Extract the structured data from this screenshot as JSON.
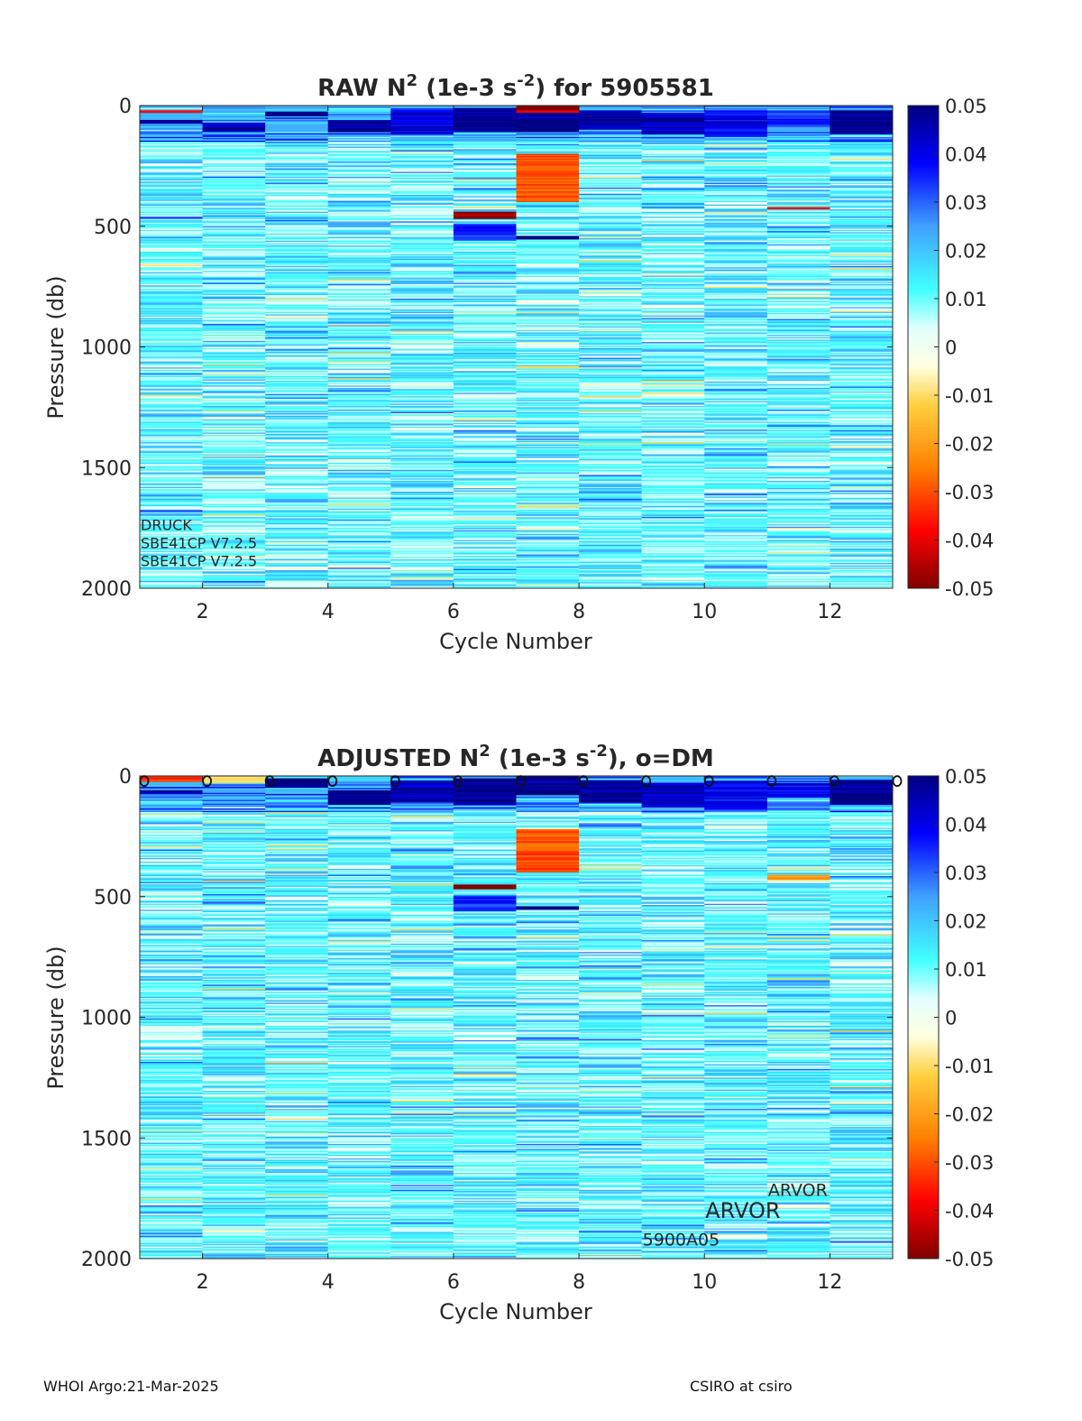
{
  "footer": {
    "left": "WHOI Argo:21-Mar-2025",
    "right": "CSIRO at csiro"
  },
  "chart_data": [
    {
      "type": "heatmap",
      "title_main": "RAW N",
      "title_sup1": "2",
      "title_mid": " (1e-3 s",
      "title_sup2": "-2",
      "title_end": ") for 5905581",
      "xlabel": "Cycle Number",
      "ylabel": "Pressure (db)",
      "xlim": [
        1,
        13
      ],
      "ylim": [
        2000,
        0
      ],
      "x_ticks": [
        2,
        4,
        6,
        8,
        10,
        12
      ],
      "y_ticks": [
        0,
        500,
        1000,
        1500,
        2000
      ],
      "colorbar": {
        "colormap": "jet-white-centered",
        "range": [
          -0.05,
          0.05
        ],
        "ticks": [
          "0.05",
          "0.04",
          "0.03",
          "0.02",
          "0.01",
          "0",
          "-0.01",
          "-0.02",
          "-0.03",
          "-0.04",
          "-0.05"
        ]
      },
      "cycles": [
        1,
        2,
        3,
        4,
        5,
        6,
        7,
        8,
        9,
        10,
        11,
        12,
        13
      ],
      "annotations": [
        {
          "text": "DRUCK",
          "x": 1,
          "y": 1738
        },
        {
          "text": "SBE41CP V7.2.5",
          "x": 1,
          "y": 1812
        },
        {
          "text": "SBE41CP V7.2.5",
          "x": 1,
          "y": 1888
        }
      ],
      "features": [
        {
          "cycle": 1,
          "pressure": [
            20,
            30
          ],
          "value": -0.04
        },
        {
          "cycle": 1,
          "pressure": [
            60,
            75
          ],
          "value": 0.05
        },
        {
          "cycle": 2,
          "pressure": [
            70,
            110
          ],
          "value": 0.045
        },
        {
          "cycle": 3,
          "pressure": [
            25,
            45
          ],
          "value": 0.05
        },
        {
          "cycle": 4,
          "pressure": [
            60,
            110
          ],
          "value": 0.05
        },
        {
          "cycle": 5,
          "pressure": [
            20,
            120
          ],
          "value": 0.04
        },
        {
          "cycle": 6,
          "pressure": [
            10,
            110
          ],
          "value": 0.05
        },
        {
          "cycle": 6,
          "pressure": [
            440,
            470
          ],
          "value": -0.05
        },
        {
          "cycle": 6,
          "pressure": [
            490,
            560
          ],
          "value": 0.035
        },
        {
          "cycle": 7,
          "pressure": [
            0,
            30
          ],
          "value": -0.045
        },
        {
          "cycle": 7,
          "pressure": [
            30,
            110
          ],
          "value": 0.05
        },
        {
          "cycle": 7,
          "pressure": [
            200,
            400
          ],
          "value": -0.03
        },
        {
          "cycle": 7,
          "pressure": [
            540,
            555
          ],
          "value": 0.05
        },
        {
          "cycle": 8,
          "pressure": [
            20,
            100
          ],
          "value": 0.045
        },
        {
          "cycle": 9,
          "pressure": [
            30,
            120
          ],
          "value": 0.045
        },
        {
          "cycle": 10,
          "pressure": [
            20,
            130
          ],
          "value": 0.04
        },
        {
          "cycle": 11,
          "pressure": [
            20,
            90
          ],
          "value": 0.035
        },
        {
          "cycle": 11,
          "pressure": [
            420,
            430
          ],
          "value": -0.04
        },
        {
          "cycle": 12,
          "pressure": [
            20,
            120
          ],
          "value": 0.05
        }
      ]
    },
    {
      "type": "heatmap",
      "title_main": "ADJUSTED N",
      "title_sup1": "2",
      "title_mid": " (1e-3 s",
      "title_sup2": "-2",
      "title_end": "), o=DM",
      "xlabel": "Cycle Number",
      "ylabel": "Pressure (db)",
      "xlim": [
        1,
        13
      ],
      "ylim": [
        2000,
        0
      ],
      "x_ticks": [
        2,
        4,
        6,
        8,
        10,
        12
      ],
      "y_ticks": [
        0,
        500,
        1000,
        1500,
        2000
      ],
      "colorbar": {
        "colormap": "jet-white-centered",
        "range": [
          -0.05,
          0.05
        ],
        "ticks": [
          "0.05",
          "0.04",
          "0.03",
          "0.02",
          "0.01",
          "0",
          "-0.01",
          "-0.02",
          "-0.03",
          "-0.04",
          "-0.05"
        ]
      },
      "cycles": [
        1,
        2,
        3,
        4,
        5,
        6,
        7,
        8,
        9,
        10,
        11,
        12,
        13
      ],
      "dm_markers": {
        "symbol": "o",
        "cycles": [
          1,
          2,
          3,
          4,
          5,
          6,
          7,
          8,
          9,
          10,
          11,
          12,
          13
        ],
        "pressure": 10
      },
      "annotations": [
        {
          "text": "ARVOR",
          "x": 11,
          "y": 1715,
          "size": "small"
        },
        {
          "text": "ARVOR",
          "x": 10,
          "y": 1800,
          "size": "large"
        },
        {
          "text": "5900A05",
          "x": 9,
          "y": 1920,
          "size": "small"
        }
      ],
      "features": [
        {
          "cycle": 1,
          "pressure": [
            0,
            25
          ],
          "value": -0.035
        },
        {
          "cycle": 1,
          "pressure": [
            60,
            75
          ],
          "value": 0.05
        },
        {
          "cycle": 2,
          "pressure": [
            0,
            30
          ],
          "value": -0.01
        },
        {
          "cycle": 3,
          "pressure": [
            10,
            50
          ],
          "value": 0.05
        },
        {
          "cycle": 4,
          "pressure": [
            60,
            120
          ],
          "value": 0.05
        },
        {
          "cycle": 5,
          "pressure": [
            20,
            110
          ],
          "value": 0.045
        },
        {
          "cycle": 6,
          "pressure": [
            10,
            120
          ],
          "value": 0.05
        },
        {
          "cycle": 6,
          "pressure": [
            450,
            470
          ],
          "value": -0.05
        },
        {
          "cycle": 6,
          "pressure": [
            495,
            560
          ],
          "value": 0.035
        },
        {
          "cycle": 7,
          "pressure": [
            0,
            80
          ],
          "value": 0.05
        },
        {
          "cycle": 7,
          "pressure": [
            220,
            400
          ],
          "value": -0.03
        },
        {
          "cycle": 7,
          "pressure": [
            540,
            555
          ],
          "value": 0.05
        },
        {
          "cycle": 8,
          "pressure": [
            20,
            110
          ],
          "value": 0.05
        },
        {
          "cycle": 9,
          "pressure": [
            30,
            130
          ],
          "value": 0.045
        },
        {
          "cycle": 10,
          "pressure": [
            20,
            140
          ],
          "value": 0.04
        },
        {
          "cycle": 11,
          "pressure": [
            30,
            90
          ],
          "value": 0.04
        },
        {
          "cycle": 11,
          "pressure": [
            410,
            430
          ],
          "value": -0.02
        },
        {
          "cycle": 12,
          "pressure": [
            20,
            120
          ],
          "value": 0.05
        }
      ]
    }
  ]
}
